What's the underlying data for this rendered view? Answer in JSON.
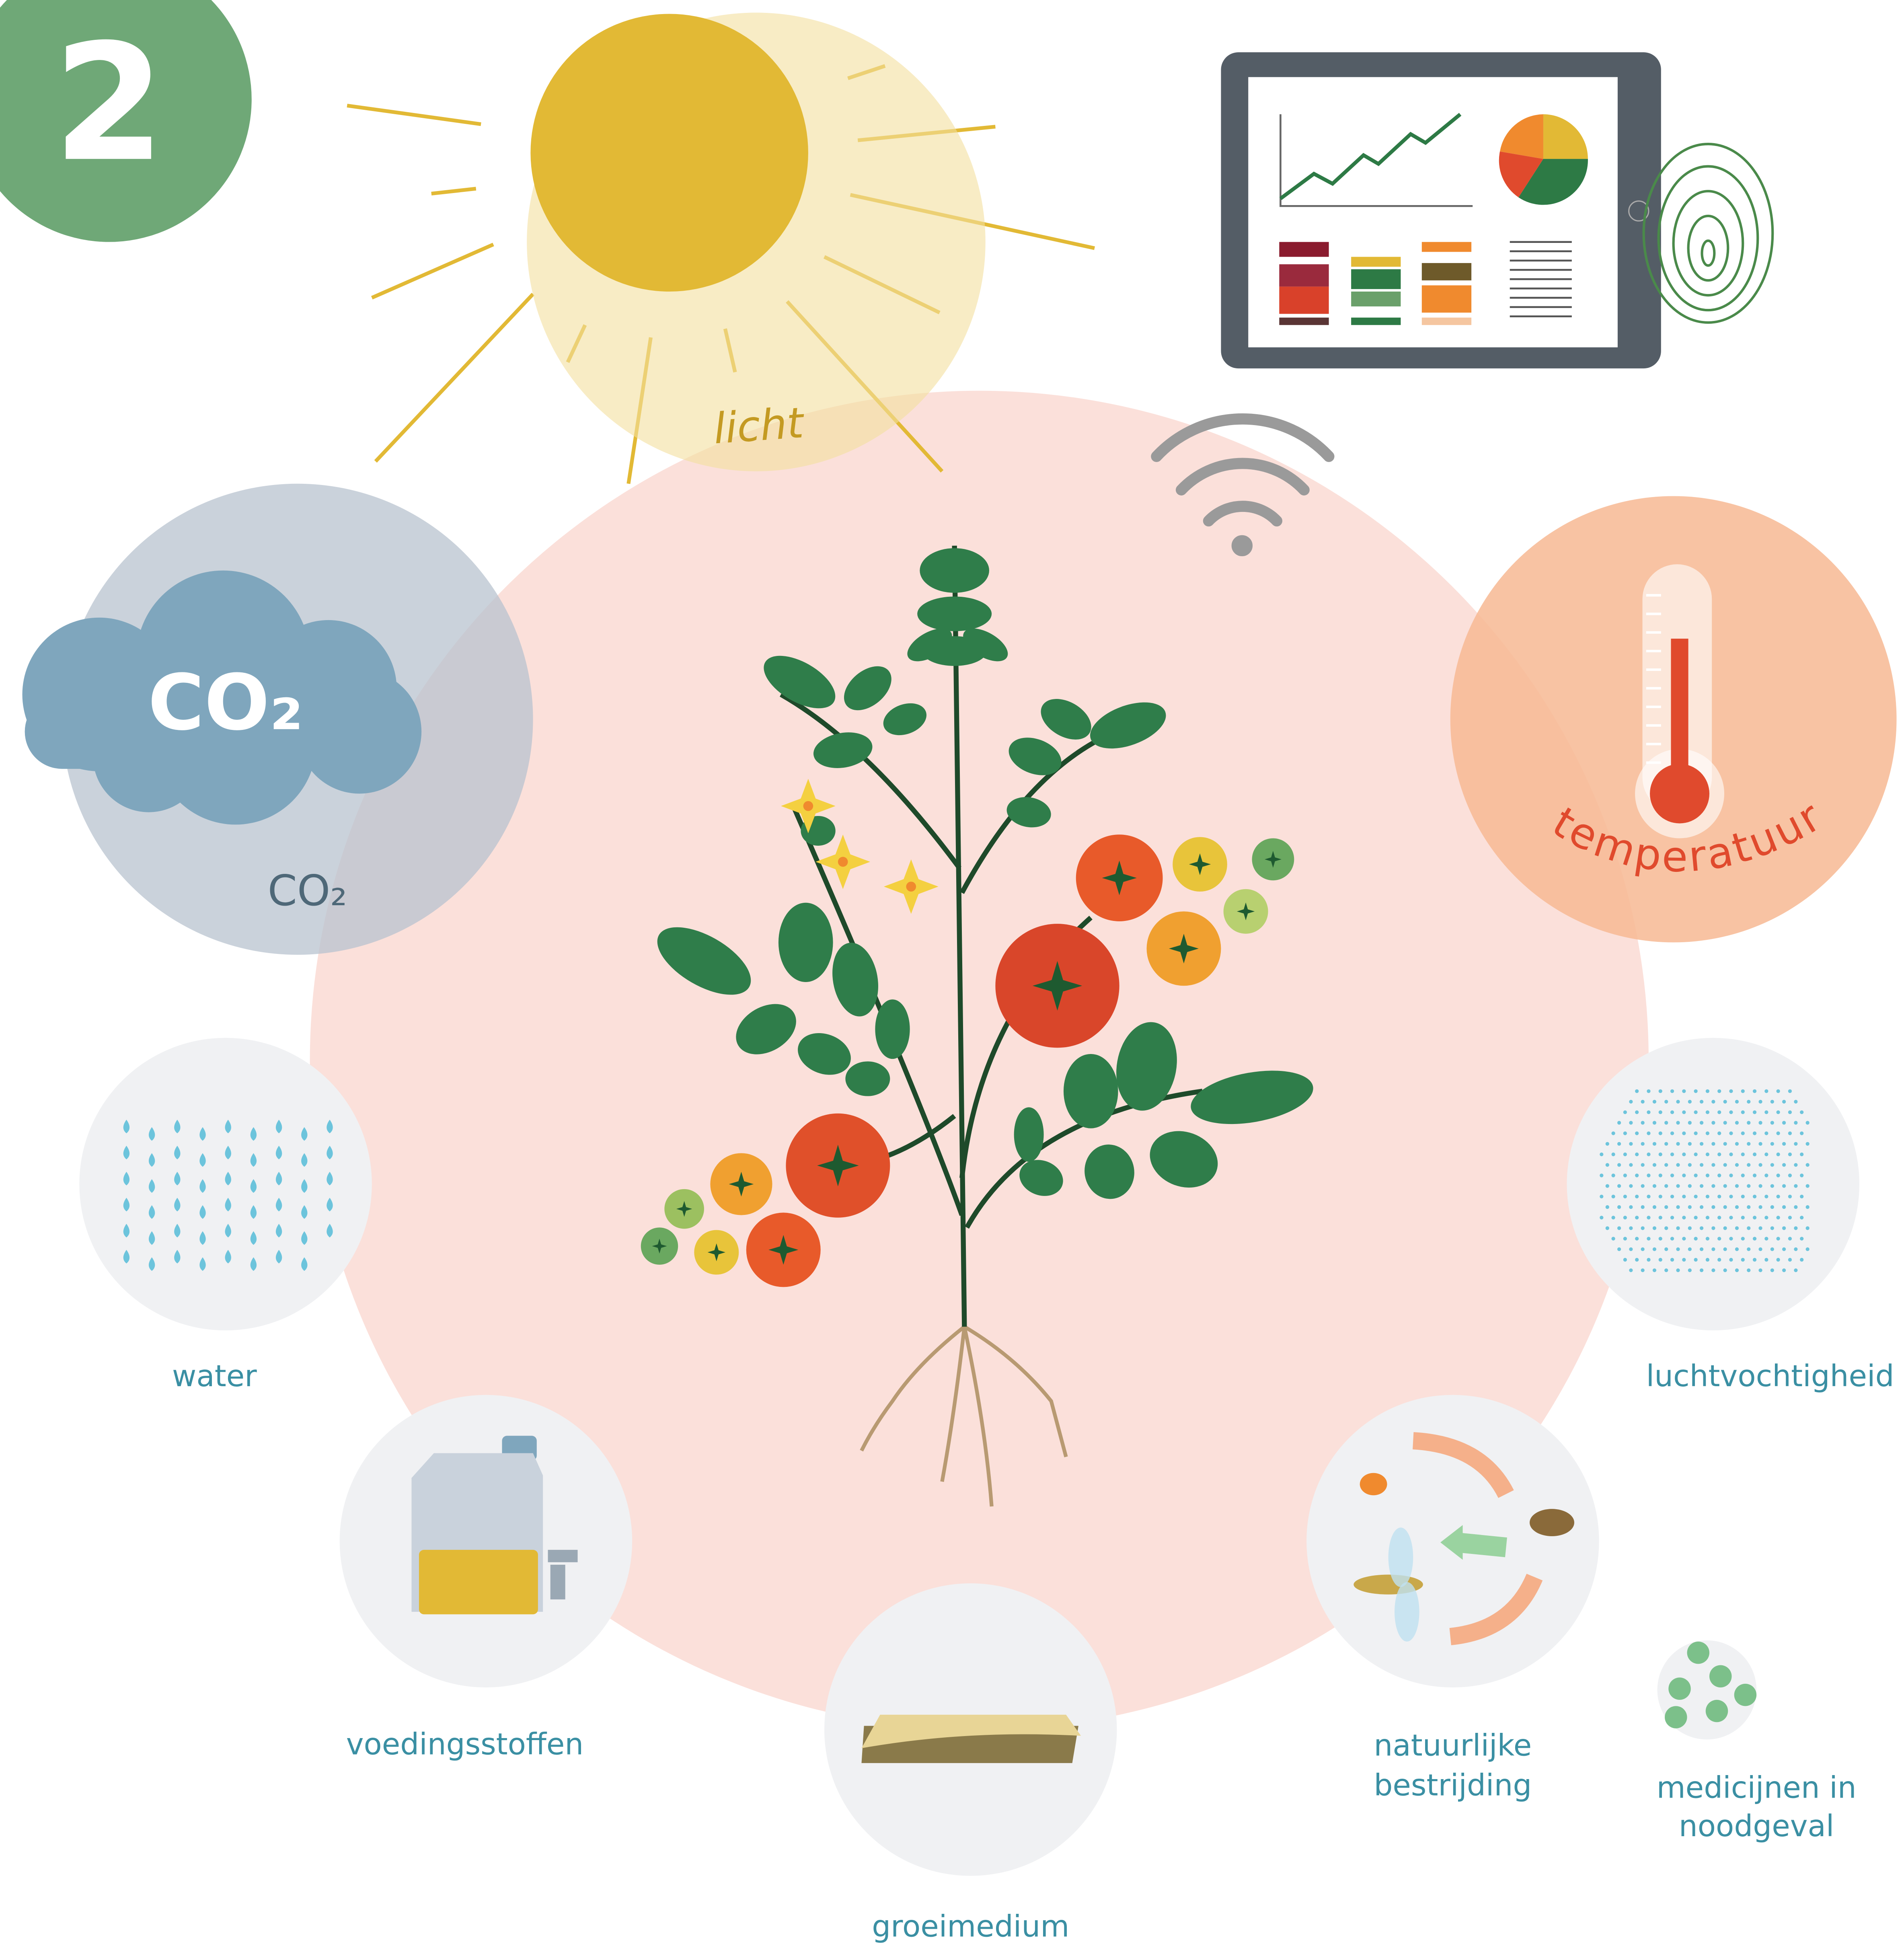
{
  "badge": "2",
  "sun": {
    "label": "licht"
  },
  "co2": {
    "icon_text": "CO₂",
    "label": "CO₂"
  },
  "temperature": {
    "label": "temperatuur"
  },
  "water": {
    "label": "water"
  },
  "humidity": {
    "label": "luchtvochtigheid"
  },
  "nutrients": {
    "label": "voedingsstoffen"
  },
  "growth_medium": {
    "label": "groeimedium"
  },
  "biological_control": {
    "label_lines": [
      "natuurlijke",
      "bestrijding"
    ]
  },
  "medicine": {
    "label_lines": [
      "medicijnen in",
      "noodgeval"
    ]
  }
}
